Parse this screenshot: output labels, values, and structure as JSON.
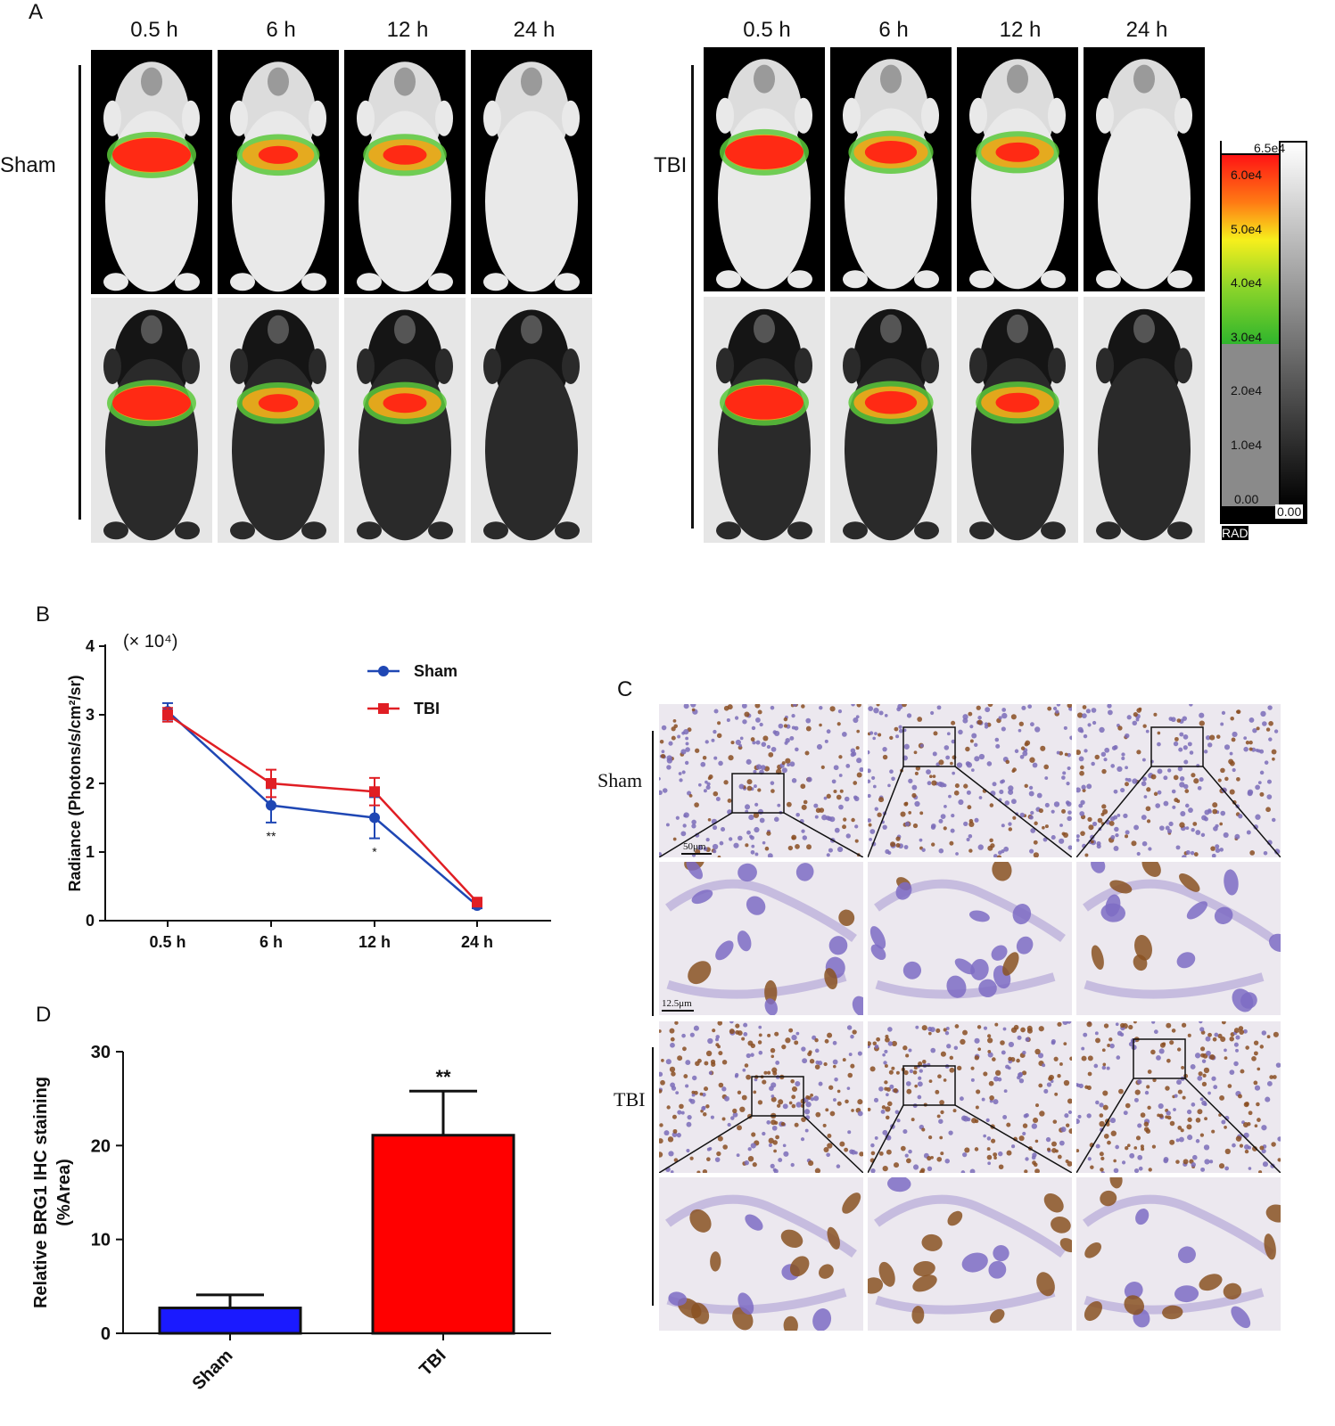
{
  "panels": {
    "a": {
      "letter": "A",
      "sham": {
        "group_label": "Sham",
        "time_labels": [
          "0.5 h",
          "6 h",
          "12 h",
          "24 h"
        ]
      },
      "tbi": {
        "group_label": "TBI",
        "time_labels": [
          "0.5 h",
          "6 h",
          "12 h",
          "24 h"
        ]
      },
      "colorbar": {
        "top_label": "6.5e4",
        "ticks": [
          "6.0e4",
          "5.0e4",
          "4.0e4",
          "3.0e4",
          "2.0e4",
          "1.0e4",
          "0.00"
        ],
        "bottom_label": "0.00",
        "unit_label": "RAD"
      }
    },
    "b": {
      "letter": "B"
    },
    "c": {
      "letter": "C",
      "sham_label": "Sham",
      "tbi_label": "TBI",
      "scale_top": "50μm",
      "scale_bottom": "12.5μm"
    },
    "d": {
      "letter": "D"
    }
  },
  "chart_data": [
    {
      "id": "panel-b",
      "type": "line",
      "categories": [
        "0.5 h",
        "6 h",
        "12 h",
        "24 h"
      ],
      "ylabel": "Radiance (Photons/s/cm²/sr)",
      "y_multiplier_label": "(× 10⁴)",
      "ylim": [
        0,
        4
      ],
      "yticks": [
        "0",
        "1",
        "2",
        "3",
        "4"
      ],
      "grid": false,
      "legend_position": "top-right",
      "series": [
        {
          "name": "Sham",
          "color": "#1f47b4",
          "marker": "circle",
          "values": [
            3.05,
            1.68,
            1.5,
            0.22
          ],
          "errors": [
            0.12,
            0.25,
            0.3,
            0.04
          ]
        },
        {
          "name": "TBI",
          "color": "#e01e24",
          "marker": "square",
          "values": [
            3.0,
            2.0,
            1.88,
            0.27
          ],
          "errors": [
            0.1,
            0.2,
            0.2,
            0.04
          ]
        }
      ],
      "annotations": [
        {
          "category": "6 h",
          "text": "**"
        },
        {
          "category": "12 h",
          "text": "*"
        }
      ]
    },
    {
      "id": "panel-d",
      "type": "bar",
      "categories": [
        "Sham",
        "TBI"
      ],
      "values": [
        2.7,
        21.1
      ],
      "errors": [
        1.4,
        4.7
      ],
      "colors": [
        "#1a1aff",
        "#ff0000"
      ],
      "ylabel_line1": "Relative BRG1 IHC staining",
      "ylabel_line2": "(%Area)",
      "ylim": [
        0,
        30
      ],
      "yticks": [
        "0",
        "10",
        "20",
        "30"
      ],
      "grid": false,
      "annotations": [
        {
          "category": "TBI",
          "text": "**"
        }
      ]
    }
  ]
}
